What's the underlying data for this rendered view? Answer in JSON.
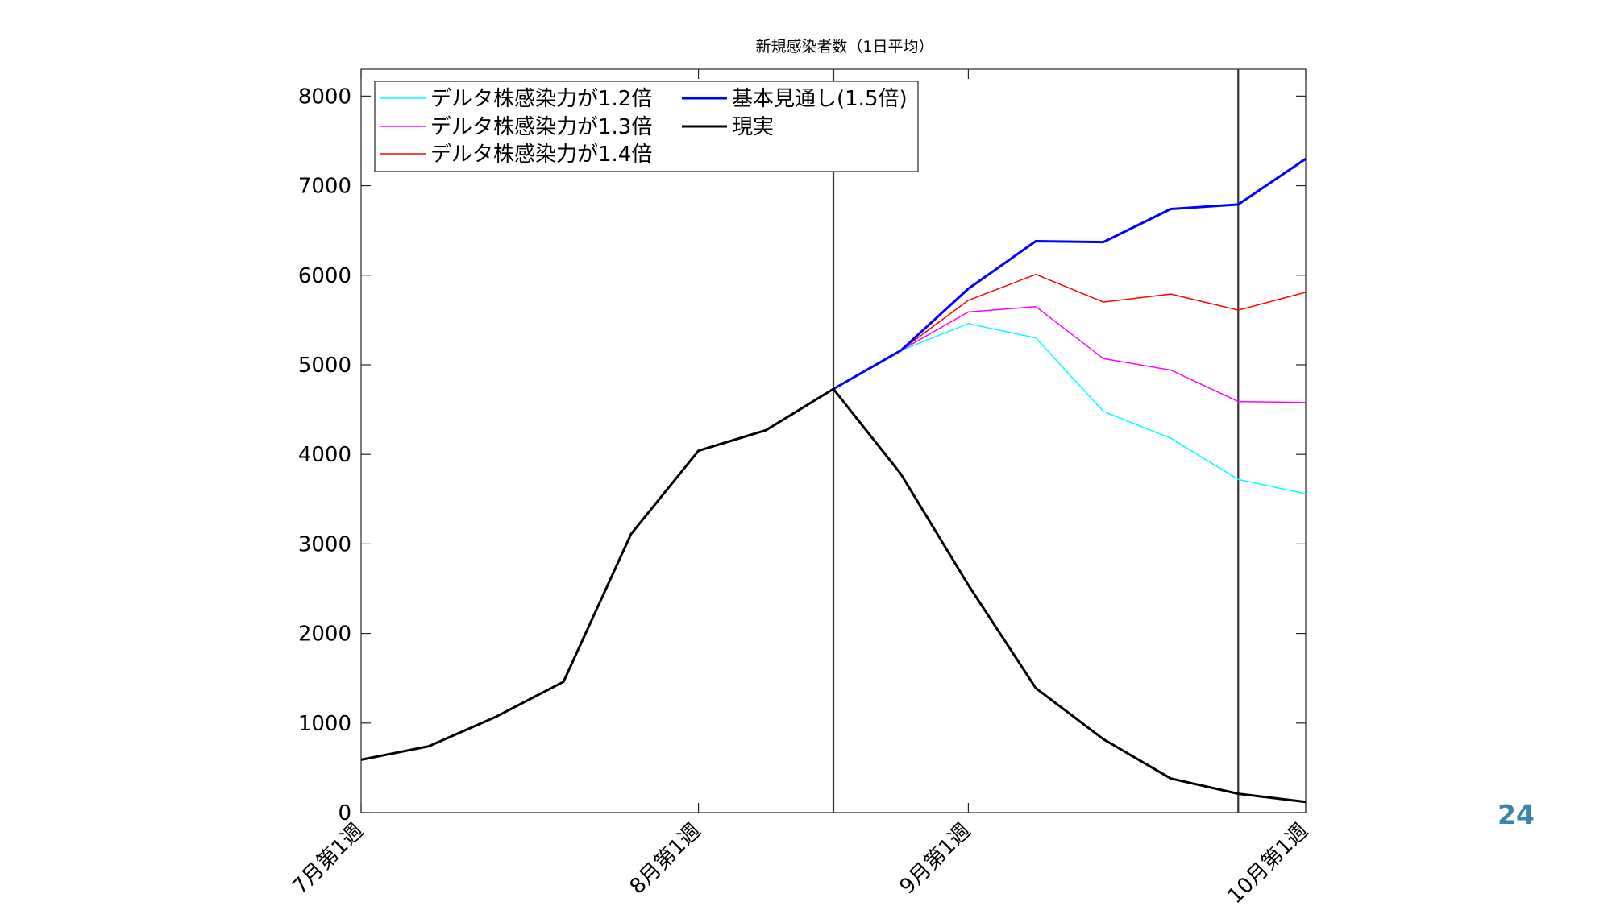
{
  "page_number": "24",
  "chart_data": {
    "type": "line",
    "title": "新規感染者数（1日平均）",
    "xlabel": "",
    "ylabel": "",
    "ylim": [
      0,
      8300
    ],
    "yticks": [
      0,
      1000,
      2000,
      3000,
      4000,
      5000,
      6000,
      7000,
      8000
    ],
    "x": [
      0,
      1,
      2,
      3,
      4,
      5,
      6,
      7,
      8,
      9,
      10,
      11,
      12,
      13,
      14
    ],
    "xlim": [
      0,
      14
    ],
    "xtick_positions": [
      0,
      5,
      9,
      14
    ],
    "xtick_labels": [
      "7月第1週",
      "8月第1週",
      "9月第1週",
      "10月第1週"
    ],
    "vertical_lines_at": [
      7,
      13
    ],
    "grid": false,
    "legend_position": "top-left",
    "series": [
      {
        "name": "デルタ株感染力が1.2倍",
        "color": "#00ffff",
        "width": 1.5,
        "x": [
          7,
          8,
          9,
          10,
          11,
          12,
          13,
          14
        ],
        "values": [
          4730,
          5160,
          5460,
          5300,
          4480,
          4180,
          3720,
          3560
        ]
      },
      {
        "name": "デルタ株感染力が1.3倍",
        "color": "#ff00ff",
        "width": 1.5,
        "x": [
          7,
          8,
          9,
          10,
          11,
          12,
          13,
          14
        ],
        "values": [
          4730,
          5160,
          5590,
          5650,
          5070,
          4940,
          4590,
          4580
        ]
      },
      {
        "name": "デルタ株感染力が1.4倍",
        "color": "#ff0000",
        "width": 1.5,
        "x": [
          7,
          8,
          9,
          10,
          11,
          12,
          13,
          14
        ],
        "values": [
          4730,
          5160,
          5720,
          6010,
          5700,
          5790,
          5610,
          5810
        ]
      },
      {
        "name": "基本見通し(1.5倍)",
        "color": "#0000ff",
        "width": 3,
        "x": [
          7,
          8,
          9,
          10,
          11,
          12,
          13,
          14
        ],
        "values": [
          4730,
          5160,
          5850,
          6380,
          6370,
          6740,
          6790,
          7300
        ]
      },
      {
        "name": "現実",
        "color": "#000000",
        "width": 3,
        "x": [
          0,
          1,
          2,
          3,
          4,
          5,
          6,
          7,
          8,
          9,
          10,
          11,
          12,
          13,
          14
        ],
        "values": [
          590,
          740,
          1070,
          1460,
          3110,
          4040,
          4270,
          4730,
          3780,
          2540,
          1390,
          820,
          380,
          210,
          120
        ]
      }
    ],
    "legend_columns": [
      [
        "デルタ株感染力が1.2倍",
        "デルタ株感染力が1.3倍",
        "デルタ株感染力が1.4倍"
      ],
      [
        "基本見通し(1.5倍)",
        "現実"
      ]
    ]
  }
}
